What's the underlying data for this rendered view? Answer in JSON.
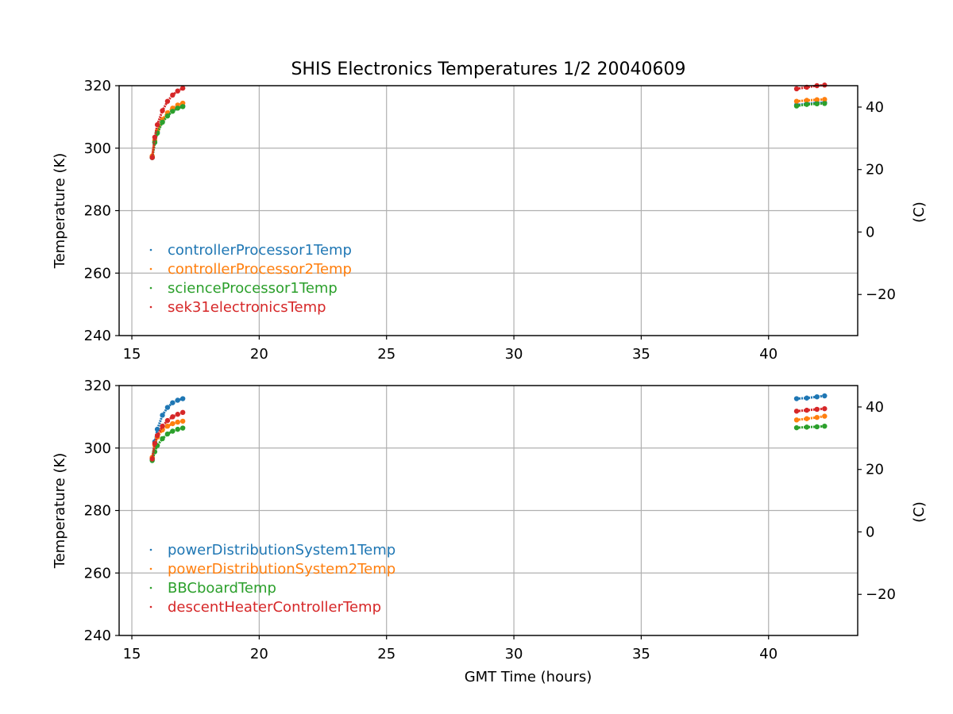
{
  "figure": {
    "title": "SHIS Electronics Temperatures 1/2 20040609"
  },
  "colors": {
    "blue": "#1f77b4",
    "orange": "#ff7f0e",
    "green": "#2ca02c",
    "red": "#d62728",
    "grid": "#b0b0b0"
  },
  "chart_data": [
    {
      "type": "scatter",
      "title": "SHIS Electronics Temperatures 1/2 20040609",
      "xlabel": "",
      "ylabel": "Temperature (K)",
      "y2label": "(C)",
      "xlim": [
        14.5,
        43.5
      ],
      "ylim": [
        240,
        320
      ],
      "y2lim": [
        -33.15,
        46.85
      ],
      "xticks": [
        15,
        20,
        25,
        30,
        35,
        40
      ],
      "yticks": [
        240,
        260,
        280,
        300,
        320
      ],
      "y2ticks": [
        -20,
        0,
        20,
        40
      ],
      "grid": true,
      "legend_position": "lower-left",
      "series": [
        {
          "name": "controllerProcessor1Temp",
          "color": "#1f77b4",
          "x": [
            15.8,
            15.9,
            16.0,
            16.2,
            16.4,
            16.6,
            16.8,
            17.0,
            41.1,
            41.5,
            41.9,
            42.2
          ],
          "y": [
            297.0,
            302.0,
            305.0,
            308.5,
            310.5,
            312.0,
            313.0,
            313.5,
            313.8,
            314.2,
            314.5,
            314.6
          ]
        },
        {
          "name": "controllerProcessor2Temp",
          "color": "#ff7f0e",
          "x": [
            15.8,
            15.9,
            16.0,
            16.2,
            16.4,
            16.6,
            16.8,
            17.0,
            41.1,
            41.5,
            41.9,
            42.2
          ],
          "y": [
            297.5,
            302.5,
            305.5,
            309.2,
            311.3,
            312.8,
            313.8,
            314.4,
            315.0,
            315.3,
            315.5,
            315.6
          ]
        },
        {
          "name": "scienceProcessor1Temp",
          "color": "#2ca02c",
          "x": [
            15.8,
            15.9,
            16.0,
            16.2,
            16.4,
            16.6,
            16.8,
            17.0,
            41.1,
            41.5,
            41.9,
            42.2
          ],
          "y": [
            297.0,
            301.8,
            304.8,
            308.3,
            310.3,
            311.8,
            312.8,
            313.3,
            313.5,
            314.0,
            314.2,
            314.3
          ]
        },
        {
          "name": "sek31electronicsTemp",
          "color": "#d62728",
          "x": [
            15.8,
            15.9,
            16.0,
            16.2,
            16.4,
            16.6,
            16.8,
            17.0,
            41.1,
            41.5,
            41.9,
            42.2
          ],
          "y": [
            297.0,
            303.5,
            307.5,
            312.0,
            315.0,
            317.0,
            318.3,
            319.2,
            319.0,
            319.5,
            320.0,
            320.2
          ]
        }
      ]
    },
    {
      "type": "scatter",
      "title": "",
      "xlabel": "GMT Time (hours)",
      "ylabel": "Temperature (K)",
      "y2label": "(C)",
      "xlim": [
        14.5,
        43.5
      ],
      "ylim": [
        240,
        320
      ],
      "y2lim": [
        -33.15,
        46.85
      ],
      "xticks": [
        15,
        20,
        25,
        30,
        35,
        40
      ],
      "yticks": [
        240,
        260,
        280,
        300,
        320
      ],
      "y2ticks": [
        -20,
        0,
        20,
        40
      ],
      "grid": true,
      "legend_position": "lower-left",
      "series": [
        {
          "name": "powerDistributionSystem1Temp",
          "color": "#1f77b4",
          "x": [
            15.8,
            15.9,
            16.0,
            16.2,
            16.4,
            16.6,
            16.8,
            17.0,
            41.1,
            41.5,
            41.9,
            42.2
          ],
          "y": [
            296.5,
            302.0,
            306.0,
            310.5,
            313.0,
            314.5,
            315.3,
            315.8,
            315.8,
            316.0,
            316.4,
            316.7
          ]
        },
        {
          "name": "powerDistributionSystem2Temp",
          "color": "#ff7f0e",
          "x": [
            15.8,
            15.9,
            16.0,
            16.2,
            16.4,
            16.6,
            16.8,
            17.0,
            41.1,
            41.5,
            41.9,
            42.2
          ],
          "y": [
            297.0,
            301.0,
            303.5,
            305.8,
            307.0,
            307.8,
            308.3,
            308.6,
            309.0,
            309.4,
            309.8,
            310.2
          ]
        },
        {
          "name": "BBCboardTemp",
          "color": "#2ca02c",
          "x": [
            15.8,
            15.9,
            16.0,
            16.2,
            16.4,
            16.6,
            16.8,
            17.0,
            41.1,
            41.5,
            41.9,
            42.2
          ],
          "y": [
            296.0,
            298.8,
            300.8,
            303.0,
            304.5,
            305.4,
            306.0,
            306.4,
            306.5,
            306.7,
            306.8,
            307.0
          ]
        },
        {
          "name": "descentHeaterControllerTemp",
          "color": "#d62728",
          "x": [
            15.8,
            15.9,
            16.0,
            16.2,
            16.4,
            16.6,
            16.8,
            17.0,
            41.1,
            41.5,
            41.9,
            42.2
          ],
          "y": [
            296.5,
            301.5,
            304.0,
            307.0,
            308.8,
            310.0,
            310.8,
            311.4,
            311.8,
            312.1,
            312.4,
            312.6
          ]
        }
      ]
    }
  ]
}
